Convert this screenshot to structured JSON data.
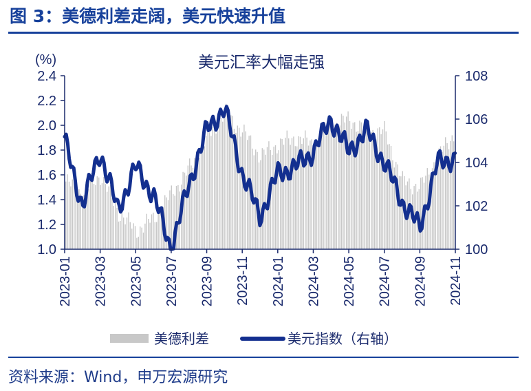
{
  "header": {
    "figure_title": "图 3：美德利差走阔，美元快速升值"
  },
  "footer": {
    "source": "资料来源：Wind，申万宏源研究"
  },
  "chart_data": {
    "type": "line",
    "title": "美元汇率大幅走强",
    "left_axis_unit": "(%)",
    "left_axis": {
      "ylim": [
        1.0,
        2.4
      ],
      "ticks": [
        "1.0",
        "1.2",
        "1.4",
        "1.6",
        "1.8",
        "2.0",
        "2.2",
        "2.4"
      ]
    },
    "right_axis": {
      "ylim": [
        100,
        108
      ],
      "ticks": [
        "100",
        "102",
        "104",
        "106",
        "108"
      ]
    },
    "x_ticks": [
      "2023-01",
      "2023-03",
      "2023-05",
      "2023-07",
      "2023-09",
      "2023-11",
      "2024-01",
      "2024-03",
      "2024-05",
      "2024-07",
      "2024-09",
      "2024-11"
    ],
    "x_range": [
      "2023-01",
      "2024-11"
    ],
    "grid": false,
    "legend_position": "bottom",
    "colors": {
      "spread": "#c8c8c8",
      "dxy": "#132f8f",
      "axis": "#1a2a6c"
    },
    "series": [
      {
        "name": "美德利差",
        "axis": "left",
        "render": "bar",
        "x": [
          "2023-01",
          "2023-02",
          "2023-03",
          "2023-04",
          "2023-05",
          "2023-06",
          "2023-07",
          "2023-08",
          "2023-09",
          "2023-10",
          "2023-11",
          "2023-12",
          "2024-01",
          "2024-02",
          "2024-03",
          "2024-04",
          "2024-05",
          "2024-06",
          "2024-07",
          "2024-08",
          "2024-09",
          "2024-10",
          "2024-11"
        ],
        "values": [
          1.55,
          1.45,
          1.6,
          1.3,
          1.15,
          1.25,
          1.45,
          1.65,
          1.9,
          2.1,
          1.95,
          1.75,
          1.85,
          1.9,
          1.85,
          2.0,
          2.05,
          1.95,
          1.95,
          1.55,
          1.5,
          1.75,
          1.95
        ]
      },
      {
        "name": "美元指数（右轴）",
        "axis": "right",
        "render": "line",
        "x": [
          "2023-01",
          "2023-02",
          "2023-03",
          "2023-04",
          "2023-05",
          "2023-06",
          "2023-07",
          "2023-08",
          "2023-09",
          "2023-10",
          "2023-11",
          "2023-12",
          "2024-01",
          "2024-02",
          "2024-03",
          "2024-04",
          "2024-05",
          "2024-06",
          "2024-07",
          "2024-08",
          "2024-09",
          "2024-10",
          "2024-11"
        ],
        "values": [
          105.0,
          102.0,
          104.5,
          101.8,
          103.8,
          102.5,
          100.0,
          103.0,
          105.5,
          106.5,
          103.5,
          101.5,
          103.5,
          103.8,
          104.5,
          106.0,
          104.5,
          105.5,
          104.0,
          102.2,
          101.0,
          104.0,
          104.2
        ]
      }
    ]
  }
}
